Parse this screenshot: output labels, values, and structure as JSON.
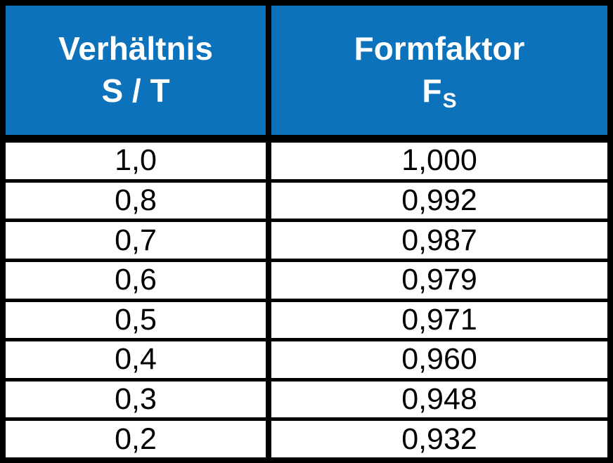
{
  "table": {
    "header": {
      "ratio_line1": "Verhältnis",
      "ratio_line2": "S / T",
      "formfactor_line1": "Formfaktor",
      "formfactor_symbol_base": "F",
      "formfactor_symbol_subscript": "S"
    },
    "rows": [
      {
        "ratio": "1,0",
        "formfactor": "1,000"
      },
      {
        "ratio": "0,8",
        "formfactor": "0,992"
      },
      {
        "ratio": "0,7",
        "formfactor": "0,987"
      },
      {
        "ratio": "0,6",
        "formfactor": "0,979"
      },
      {
        "ratio": "0,5",
        "formfactor": "0,971"
      },
      {
        "ratio": "0,4",
        "formfactor": "0,960"
      },
      {
        "ratio": "0,3",
        "formfactor": "0,948"
      },
      {
        "ratio": "0,2",
        "formfactor": "0,932"
      }
    ],
    "colors": {
      "header_bg": "#0c72bc",
      "header_text": "#ffffff",
      "border": "#000000",
      "cell_bg": "#ffffff",
      "cell_text": "#000000"
    }
  },
  "chart_data": {
    "type": "table",
    "title": "",
    "columns": [
      "Verhältnis S / T",
      "Formfaktor FS"
    ],
    "categories": [
      "1,0",
      "0,8",
      "0,7",
      "0,6",
      "0,5",
      "0,4",
      "0,3",
      "0,2"
    ],
    "values": [
      1.0,
      0.992,
      0.987,
      0.979,
      0.971,
      0.96,
      0.948,
      0.932
    ],
    "x_numeric": [
      1.0,
      0.8,
      0.7,
      0.6,
      0.5,
      0.4,
      0.3,
      0.2
    ],
    "values_display": [
      "1,000",
      "0,992",
      "0,987",
      "0,979",
      "0,971",
      "0,960",
      "0,948",
      "0,932"
    ],
    "decimal_separator": ",",
    "grid": "on",
    "legend_position": "none"
  }
}
